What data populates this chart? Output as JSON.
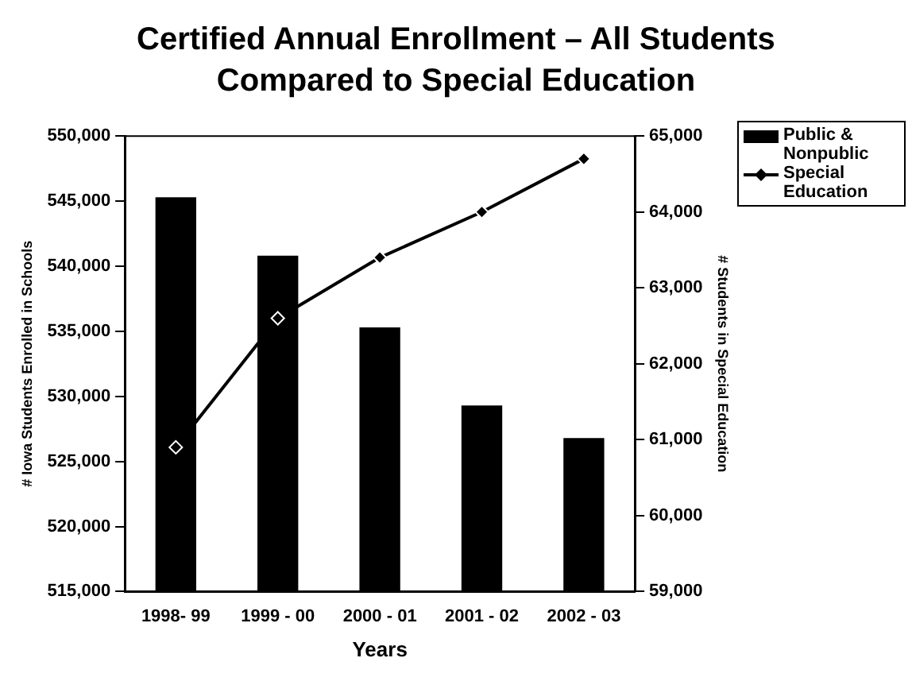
{
  "chart_data": {
    "type": "bar",
    "title": "Certified Annual Enrollment – All Students Compared to Special Education",
    "xlabel": "Years",
    "ylabel": "# Iowa Students Enrolled in Schools",
    "y2label": "# Students in Special Education",
    "categories": [
      "1998- 99",
      "1999 - 00",
      "2000 - 01",
      "2001 - 02",
      "2002 - 03"
    ],
    "series": [
      {
        "name": "Public & Nonpublic",
        "color": "#000000",
        "values": [
          545300,
          540800,
          535300,
          529300,
          526800
        ]
      },
      {
        "name": "Special Education",
        "type": "line",
        "axis": "y2",
        "color": "#000000",
        "marker": "diamond",
        "values": [
          60900,
          62600,
          63400,
          64000,
          64700
        ]
      }
    ],
    "ylim": [
      515000,
      550000
    ],
    "yticks": [
      {
        "value": 515000,
        "label": "515,000"
      },
      {
        "value": 520000,
        "label": "520,000"
      },
      {
        "value": 525000,
        "label": "525,000"
      },
      {
        "value": 530000,
        "label": "530,000"
      },
      {
        "value": 535000,
        "label": "535,000"
      },
      {
        "value": 540000,
        "label": "540,000"
      },
      {
        "value": 545000,
        "label": "545,000"
      },
      {
        "value": 550000,
        "label": "550,000"
      }
    ],
    "y2lim": [
      59000,
      65000
    ],
    "y2ticks": [
      {
        "value": 59000,
        "label": "59,000"
      },
      {
        "value": 60000,
        "label": "60,000"
      },
      {
        "value": 61000,
        "label": "61,000"
      },
      {
        "value": 62000,
        "label": "62,000"
      },
      {
        "value": 63000,
        "label": "63,000"
      },
      {
        "value": 64000,
        "label": "64,000"
      },
      {
        "value": 65000,
        "label": "65,000"
      }
    ],
    "grid": false,
    "legend": "top right"
  }
}
